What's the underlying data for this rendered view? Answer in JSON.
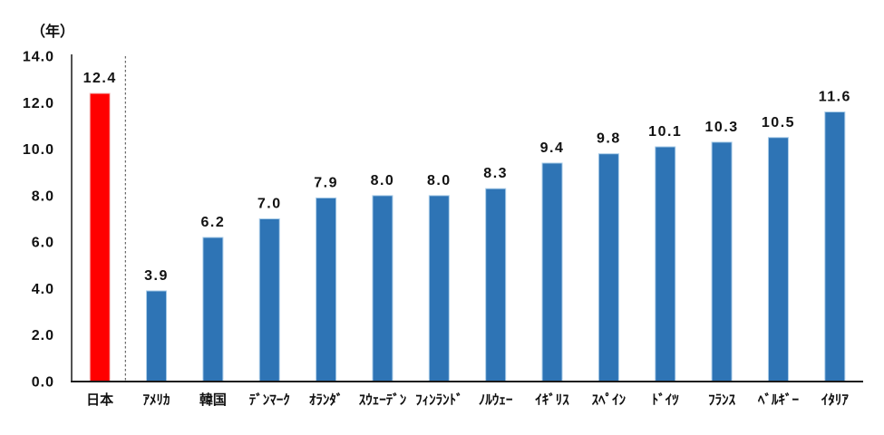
{
  "chart_data": {
    "type": "bar",
    "unit_label": "（年）",
    "categories": [
      "日本",
      "ｱﾒﾘｶ",
      "韓国",
      "ﾃﾞﾝﾏｰｸ",
      "ｵﾗﾝﾀﾞ",
      "ｽｳｪｰﾃﾞﾝ",
      "ﾌｨﾝﾗﾝﾄﾞ",
      "ﾉﾙｳｪｰ",
      "ｲｷﾞﾘｽ",
      "ｽﾍﾟｲﾝ",
      "ﾄﾞｲﾂ",
      "ﾌﾗﾝｽ",
      "ﾍﾞﾙｷﾞｰ",
      "ｲﾀﾘｱ"
    ],
    "category_keys": [
      "japan",
      "usa",
      "south-korea",
      "denmark",
      "netherlands",
      "sweden",
      "finland",
      "norway",
      "uk",
      "spain",
      "germany",
      "france",
      "belgium",
      "italy"
    ],
    "values": [
      12.4,
      3.9,
      6.2,
      7.0,
      7.9,
      8.0,
      8.0,
      8.3,
      9.4,
      9.8,
      10.1,
      10.3,
      10.5,
      11.6
    ],
    "value_labels": [
      "12.4",
      "3.9",
      "6.2",
      "7.0",
      "7.9",
      "8.0",
      "8.0",
      "8.3",
      "9.4",
      "9.8",
      "10.1",
      "10.3",
      "10.5",
      "11.6"
    ],
    "highlight_index": 0,
    "separator_after_index": 0,
    "bar_color": "#2E74B5",
    "bar_border_color": "#A9CCE8",
    "highlight_color": "#FF0000",
    "highlight_border_color": "#F2BDBD",
    "axis_color": "#1a1a1a",
    "separator_color": "#666666",
    "ylim": [
      0,
      14
    ],
    "ytick_step": 2,
    "ytick_labels": [
      "0.0",
      "2.0",
      "4.0",
      "6.0",
      "8.0",
      "10.0",
      "12.0",
      "14.0"
    ],
    "grid": false,
    "legend": "none",
    "title": ""
  }
}
